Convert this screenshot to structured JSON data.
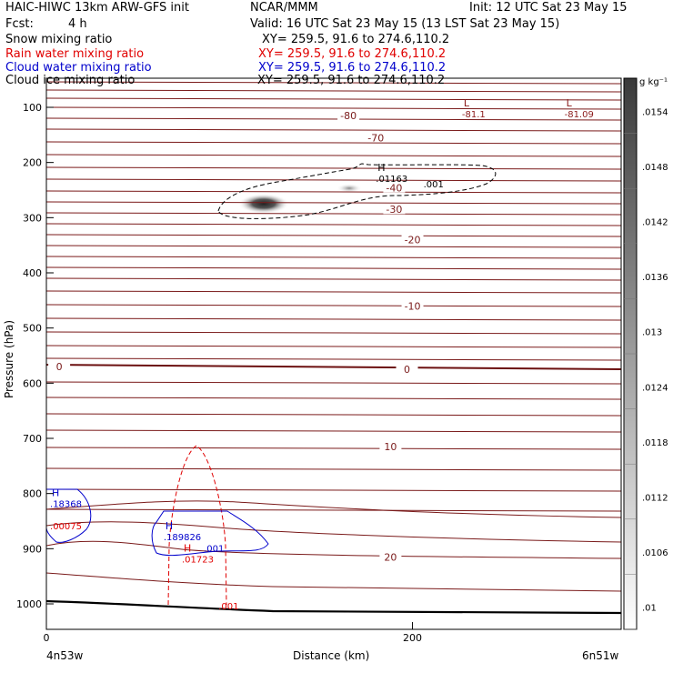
{
  "header": {
    "model": "HAIC-HIWC 13km ARW-GFS init",
    "org": "NCAR/MMM",
    "init": "Init: 12 UTC Sat 23 May 15",
    "fcst_label": "Fcst:",
    "fcst_value": "4 h",
    "valid": "Valid: 16 UTC Sat 23 May 15 (13 LST Sat 23 May 15)"
  },
  "fields": [
    {
      "name": "Snow mixing ratio",
      "xy": "XY= 259.5, 91.6 to 274.6,110.2",
      "color": "#000000"
    },
    {
      "name": "Rain water mixing ratio",
      "xy": "XY= 259.5, 91.6 to 274.6,110.2",
      "color": "#e00000"
    },
    {
      "name": "Cloud water mixing ratio",
      "xy": "XY= 259.5, 91.6 to 274.6,110.2",
      "color": "#0000cc"
    },
    {
      "name": "Cloud ice mixing ratio",
      "xy": "XY= 259.5, 91.6 to 274.6,110.2",
      "color": "#000000"
    }
  ],
  "axes": {
    "ylabel": "Pressure (hPa)",
    "xlabel": "Distance (km)",
    "x_left_label": "4n53w",
    "x_right_label": "6n51w"
  },
  "colorbar": {
    "unit_label": "g kg⁻¹",
    "ticks": [
      ".0154",
      ".0148",
      ".0142",
      ".0136",
      ".013",
      ".0124",
      ".0118",
      ".0112",
      ".0106",
      ".01"
    ]
  },
  "chart_data": {
    "type": "contour",
    "x": {
      "label": "Distance (km)",
      "range": [
        0,
        314
      ],
      "ticks": [
        0,
        200
      ]
    },
    "y": {
      "label": "Pressure (hPa)",
      "range": [
        1040,
        50
      ],
      "ticks": [
        100,
        200,
        300,
        400,
        500,
        600,
        700,
        800,
        900,
        1000
      ]
    },
    "temperature_labels": [
      {
        "text": "-80",
        "x": 165,
        "p": 115
      },
      {
        "text": "-70",
        "x": 180,
        "p": 155
      },
      {
        "text": "-40",
        "x": 190,
        "p": 246
      },
      {
        "text": "-30",
        "x": 190,
        "p": 285
      },
      {
        "text": "-20",
        "x": 200,
        "p": 340
      },
      {
        "text": "-10",
        "x": 200,
        "p": 460
      },
      {
        "text": "0",
        "x": 7,
        "p": 570
      },
      {
        "text": "0",
        "x": 197,
        "p": 575
      },
      {
        "text": "10",
        "x": 188,
        "p": 715
      },
      {
        "text": "20",
        "x": 188,
        "p": 915
      }
    ],
    "extrema": [
      {
        "kind": "L",
        "value": "-81.1",
        "x": 227,
        "p": 98,
        "color": "#8b1a1a"
      },
      {
        "kind": "L",
        "value": "-81.09",
        "x": 283,
        "p": 98,
        "color": "#8b1a1a"
      },
      {
        "kind": "H",
        "value": ".01163",
        "x": 180,
        "p": 215,
        "color": "#000000"
      },
      {
        "kind": "H",
        "value": ".18368",
        "x": 2,
        "p": 805,
        "color": "#0000cc"
      },
      {
        "kind": "H",
        "value": ".189826",
        "x": 64,
        "p": 865,
        "color": "#0000cc"
      },
      {
        "kind": "H",
        "value": ".01723",
        "x": 74,
        "p": 905,
        "color": "#e00000"
      },
      {
        "kind": "",
        "value": ".00075",
        "x": 2,
        "p": 845,
        "color": "#e00000"
      }
    ],
    "contour_labels": [
      {
        "text": ".001",
        "x": 206,
        "p": 245,
        "color": "#000000"
      },
      {
        "text": ".001",
        "x": 86,
        "p": 905,
        "color": "#0000cc"
      },
      {
        "text": ".001",
        "x": 94,
        "p": 1010,
        "color": "#e00000"
      }
    ]
  }
}
